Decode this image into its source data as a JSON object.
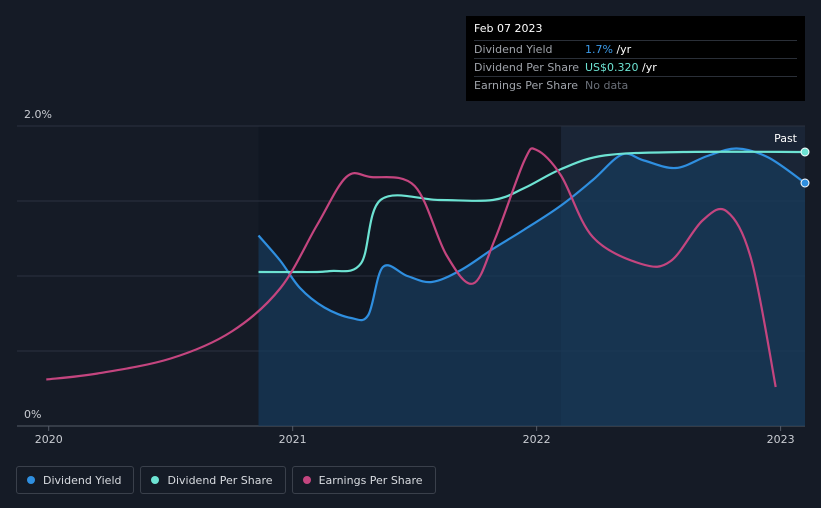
{
  "tooltip": {
    "date": "Feb 07 2023",
    "rows": [
      {
        "label": "Dividend Yield",
        "value": "1.7%",
        "suffix": " /yr"
      },
      {
        "label": "Dividend Per Share",
        "value": "US$0.320",
        "suffix": " /yr"
      },
      {
        "label": "Earnings Per Share",
        "value": "No data",
        "suffix": ""
      }
    ]
  },
  "colors": {
    "background": "#151b26",
    "dividend_yield": "#2f8fe0",
    "dividend_per_share": "#6de3d3",
    "earnings_per_share": "#c4457f",
    "past_region": "#1a2536",
    "area_fill": "#173a5a"
  },
  "legend": [
    {
      "label": "Dividend Yield",
      "color": "#2f8fe0"
    },
    {
      "label": "Dividend Per Share",
      "color": "#6de3d3"
    },
    {
      "label": "Earnings Per Share",
      "color": "#c4457f"
    }
  ],
  "chart_data": {
    "type": "line",
    "title": "",
    "xlabel": "",
    "ylabel": "",
    "x_ticks": [
      "2020",
      "2021",
      "2022",
      "2023"
    ],
    "y_ticks": [
      "0%",
      "2.0%"
    ],
    "xlim": [
      2019.87,
      2023.1
    ],
    "ylim": [
      0,
      2.0
    ],
    "past_label": "Past",
    "grid": true,
    "series": [
      {
        "name": "Dividend Yield",
        "unit": "%",
        "x": [
          2020.86,
          2020.95,
          2021.03,
          2021.13,
          2021.24,
          2021.31,
          2021.37,
          2021.47,
          2021.57,
          2021.69,
          2021.82,
          2021.95,
          2022.1,
          2022.23,
          2022.35,
          2022.44,
          2022.57,
          2022.7,
          2022.82,
          2022.95,
          2023.1
        ],
        "values": [
          1.27,
          1.1,
          0.92,
          0.79,
          0.72,
          0.74,
          1.06,
          1.0,
          0.96,
          1.04,
          1.18,
          1.31,
          1.47,
          1.64,
          1.81,
          1.77,
          1.72,
          1.8,
          1.85,
          1.79,
          1.62
        ]
      },
      {
        "name": "Dividend Per Share",
        "unit": "US$",
        "x": [
          2020.86,
          2021.0,
          2021.15,
          2021.28,
          2021.36,
          2021.6,
          2021.82,
          2021.95,
          2022.1,
          2022.28,
          2022.6,
          2023.1
        ],
        "values": [
          0.18,
          0.18,
          0.181,
          0.19,
          0.264,
          0.264,
          0.264,
          0.278,
          0.3,
          0.316,
          0.32,
          0.32
        ]
      },
      {
        "name": "Earnings Per Share",
        "unit": "",
        "x": [
          2019.99,
          2020.2,
          2020.5,
          2020.75,
          2020.95,
          2021.1,
          2021.22,
          2021.32,
          2021.5,
          2021.63,
          2021.74,
          2021.83,
          2021.95,
          2022.0,
          2022.1,
          2022.23,
          2022.43,
          2022.55,
          2022.68,
          2022.78,
          2022.88,
          2022.98
        ],
        "values": [
          0.31,
          0.35,
          0.45,
          0.63,
          0.92,
          1.34,
          1.66,
          1.66,
          1.6,
          1.14,
          0.95,
          1.25,
          1.77,
          1.84,
          1.67,
          1.26,
          1.08,
          1.1,
          1.37,
          1.43,
          1.11,
          0.26
        ]
      }
    ]
  }
}
